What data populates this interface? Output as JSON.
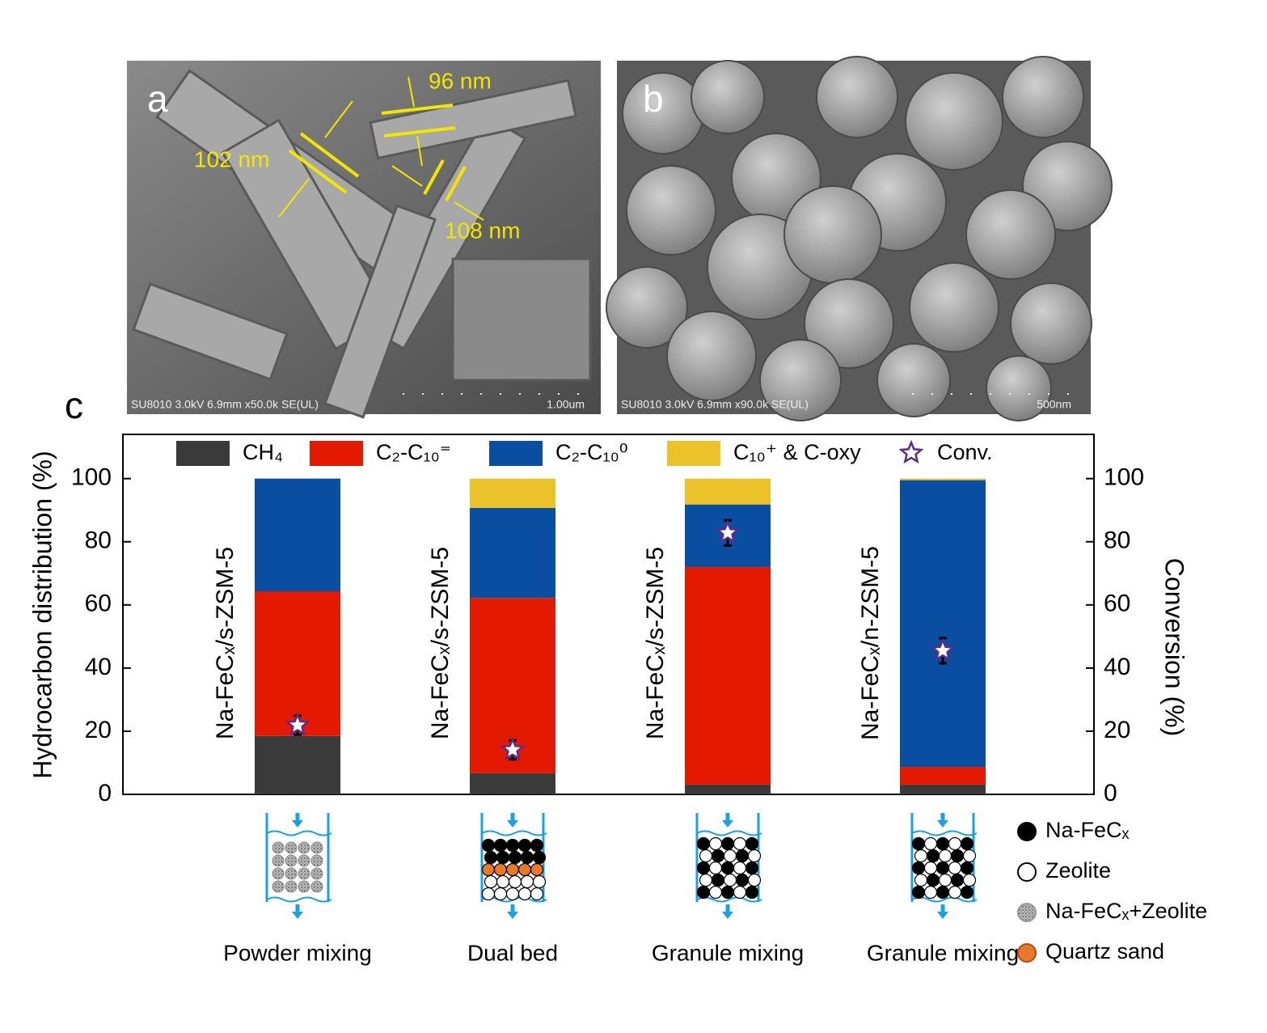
{
  "images": {
    "a": {
      "label": "a",
      "annotations": [
        "96 nm",
        "102 nm",
        "108 nm"
      ],
      "footer": "SU8010 3.0kV 6.9mm x50.0k SE(UL)",
      "scale": "1.00um"
    },
    "b": {
      "label": "b",
      "footer": "SU8010 3.0kV 6.9mm x90.0k SE(UL)",
      "scale": "500nm"
    }
  },
  "chart_data": {
    "type": "bar",
    "stacked": true,
    "panel_label": "c",
    "categories": [
      "Na-FeCₓ/s-ZSM-5",
      "Na-FeCₓ/s-ZSM-5",
      "Na-FeCₓ/s-ZSM-5",
      "Na-FeCₓ/n-ZSM-5"
    ],
    "bed_labels": [
      "Powder mixing",
      "Dual bed",
      "Granule mixing",
      "Granule mixing"
    ],
    "ylabel": "Hydrocarbon distribution (%)",
    "y2label": "Conversion (%)",
    "ylim": [
      0,
      114
    ],
    "yticks": [
      0,
      20,
      40,
      60,
      80,
      100
    ],
    "y2lim": [
      0,
      114
    ],
    "y2ticks": [
      0,
      20,
      40,
      60,
      80,
      100
    ],
    "legend": "top",
    "series": [
      {
        "name": "CH₄",
        "color": "#3a3a3a",
        "values": [
          18.5,
          6.7,
          3.1,
          3.1
        ]
      },
      {
        "name": "C₂-C₁₀⁼",
        "color": "#e31a00",
        "values": [
          45.8,
          55.5,
          68.9,
          5.6
        ]
      },
      {
        "name": "C₂-C₁₀⁰",
        "color": "#0a4ea1",
        "values": [
          35.7,
          28.5,
          19.8,
          90.8
        ]
      },
      {
        "name": "C₁₀⁺ & C-oxy",
        "color": "#ebc22a",
        "values": [
          0,
          9.3,
          8.2,
          0.5
        ]
      },
      {
        "name": "Conv.",
        "type": "scatter",
        "axis": "y2",
        "color": "#5b2c8a",
        "values": [
          21.9,
          14.1,
          82.8,
          45.5
        ],
        "errors": [
          3,
          3,
          4,
          4
        ]
      }
    ],
    "bed_legend": [
      "Na-FeCₓ",
      "Zeolite",
      "Na-FeCₓ+Zeolite",
      "Quartz sand"
    ]
  }
}
